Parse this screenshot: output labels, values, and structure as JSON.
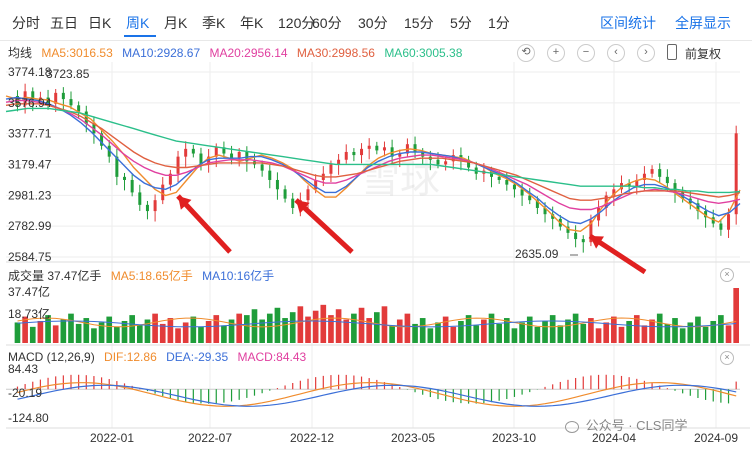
{
  "tabs": [
    "分时",
    "五日",
    "日K",
    "周K",
    "月K",
    "季K",
    "年K",
    "120分",
    "60分",
    "30分",
    "15分",
    "5分",
    "1分"
  ],
  "active_tab": "周K",
  "tools": {
    "range_stats": "区间统计",
    "fullscreen": "全屏显示"
  },
  "main_legend": {
    "avg_label": "均线",
    "ma5": "MA5:3016.53",
    "ma10": "MA10:2928.67",
    "ma20": "MA20:2956.14",
    "ma30": "MA30:2998.56",
    "ma60": "MA60:3005.38"
  },
  "controls": {
    "reset": "⟲",
    "zoom_in": "+",
    "zoom_out": "−",
    "left": "‹",
    "right": "›",
    "adjust": "前复权"
  },
  "volume_legend": {
    "title": "成交量 37.47亿手",
    "ma5": "MA5:18.65亿手",
    "ma10": "MA10:16亿手"
  },
  "macd_legend": {
    "title": "MACD (12,26,9)",
    "dif": "DIF:12.86",
    "dea": "DEA:-29.35",
    "macd": "MACD:84.43"
  },
  "watermark": "雪球",
  "footer_source": "公众号 · CLS同学",
  "colors": {
    "up": "#e23b3b",
    "down": "#1f9d3a",
    "ma5": "#f08c2d",
    "ma10": "#3b6fd8",
    "ma20": "#e040a0",
    "ma30": "#e06040",
    "ma60": "#2bbf8a",
    "accent": "#1a73e8"
  },
  "chart_data": {
    "type": "candlestick",
    "y_ticks": [
      "3774.18",
      "3576.94",
      "3377.71",
      "3179.47",
      "2981.23",
      "2782.99",
      "2584.75"
    ],
    "y_range": [
      2584.75,
      3774.18
    ],
    "x_ticks": [
      "2022-01",
      "2022-07",
      "2022-12",
      "2023-05",
      "2023-10",
      "2024-04",
      "2024-09"
    ],
    "annotations": {
      "high": "3723.85",
      "low": "2635.09"
    },
    "close_path": [
      3620,
      3560,
      3650,
      3590,
      3610,
      3570,
      3640,
      3600,
      3560,
      3520,
      3440,
      3380,
      3300,
      3230,
      3100,
      3080,
      3000,
      2920,
      2880,
      2950,
      3050,
      3120,
      3230,
      3280,
      3250,
      3180,
      3230,
      3290,
      3250,
      3220,
      3260,
      3200,
      3180,
      3140,
      3080,
      3020,
      2960,
      2900,
      2950,
      3020,
      3080,
      3120,
      3180,
      3210,
      3260,
      3240,
      3280,
      3300,
      3270,
      3290,
      3230,
      3250,
      3310,
      3260,
      3230,
      3210,
      3180,
      3200,
      3240,
      3210,
      3160,
      3120,
      3140,
      3100,
      3080,
      3050,
      3020,
      2980,
      2950,
      2900,
      2860,
      2830,
      2780,
      2740,
      2700,
      2680,
      2820,
      2900,
      2980,
      3020,
      3060,
      3040,
      3080,
      3120,
      3150,
      3100,
      3060,
      3000,
      2960,
      2930,
      2880,
      2840,
      2800,
      2760,
      2860,
      3380
    ],
    "ma_series": [
      {
        "name": "MA5",
        "values": [
          3620,
          3600,
          3610,
          3600,
          3594,
          3570,
          3550,
          3510,
          3470,
          3400,
          3330,
          3250,
          3160,
          3090,
          3020,
          2980,
          3000,
          3080,
          3160,
          3220,
          3240,
          3220,
          3200,
          3220,
          3240,
          3220,
          3190,
          3150,
          3080,
          3020,
          2970,
          2970,
          3030,
          3100,
          3170,
          3220,
          3250,
          3270,
          3280,
          3270,
          3250,
          3240,
          3230,
          3220,
          3190,
          3160,
          3120,
          3090,
          3050,
          3000,
          2940,
          2880,
          2810,
          2760,
          2750,
          2800,
          2900,
          2980,
          3040,
          3070,
          3090,
          3080,
          3040,
          2990,
          2940,
          2890,
          2840,
          2810,
          2880,
          3016
        ]
      },
      {
        "name": "MA10",
        "values": [
          3600,
          3610,
          3600,
          3590,
          3570,
          3540,
          3500,
          3450,
          3390,
          3320,
          3250,
          3180,
          3110,
          3060,
          3030,
          3020,
          3050,
          3110,
          3170,
          3210,
          3220,
          3220,
          3220,
          3230,
          3230,
          3210,
          3180,
          3140,
          3090,
          3040,
          3000,
          3000,
          3040,
          3100,
          3160,
          3200,
          3230,
          3250,
          3260,
          3260,
          3250,
          3240,
          3230,
          3210,
          3190,
          3160,
          3130,
          3100,
          3060,
          3010,
          2960,
          2900,
          2850,
          2810,
          2800,
          2830,
          2880,
          2940,
          2990,
          3030,
          3050,
          3050,
          3030,
          3000,
          2960,
          2920,
          2880,
          2850,
          2870,
          2929
        ]
      },
      {
        "name": "MA20",
        "values": [
          3580,
          3590,
          3590,
          3580,
          3560,
          3540,
          3510,
          3470,
          3420,
          3370,
          3310,
          3250,
          3200,
          3160,
          3130,
          3110,
          3110,
          3130,
          3160,
          3190,
          3200,
          3210,
          3210,
          3210,
          3200,
          3190,
          3170,
          3140,
          3110,
          3080,
          3060,
          3060,
          3080,
          3110,
          3140,
          3170,
          3200,
          3220,
          3230,
          3240,
          3240,
          3230,
          3220,
          3210,
          3190,
          3170,
          3140,
          3110,
          3080,
          3050,
          3010,
          2970,
          2930,
          2900,
          2890,
          2890,
          2910,
          2940,
          2970,
          3000,
          3010,
          3020,
          3010,
          3000,
          2980,
          2960,
          2940,
          2930,
          2940,
          2956
        ]
      },
      {
        "name": "MA30",
        "values": [
          3560,
          3570,
          3570,
          3570,
          3560,
          3540,
          3520,
          3490,
          3450,
          3410,
          3360,
          3310,
          3260,
          3220,
          3190,
          3170,
          3160,
          3160,
          3170,
          3180,
          3190,
          3190,
          3190,
          3190,
          3190,
          3180,
          3170,
          3150,
          3130,
          3110,
          3100,
          3100,
          3110,
          3120,
          3140,
          3160,
          3180,
          3200,
          3210,
          3220,
          3220,
          3220,
          3210,
          3200,
          3190,
          3170,
          3150,
          3130,
          3110,
          3080,
          3050,
          3020,
          2990,
          2960,
          2950,
          2950,
          2960,
          2970,
          2990,
          3000,
          3010,
          3010,
          3010,
          3010,
          3000,
          2990,
          2980,
          2970,
          2980,
          2999
        ]
      },
      {
        "name": "MA60",
        "values": [
          3520,
          3530,
          3540,
          3540,
          3540,
          3530,
          3520,
          3510,
          3490,
          3470,
          3450,
          3430,
          3410,
          3390,
          3370,
          3350,
          3330,
          3320,
          3310,
          3300,
          3290,
          3280,
          3270,
          3260,
          3250,
          3240,
          3230,
          3220,
          3210,
          3200,
          3190,
          3180,
          3180,
          3180,
          3180,
          3180,
          3180,
          3180,
          3180,
          3180,
          3180,
          3170,
          3160,
          3150,
          3140,
          3130,
          3120,
          3110,
          3100,
          3090,
          3080,
          3070,
          3060,
          3050,
          3040,
          3040,
          3040,
          3040,
          3040,
          3040,
          3030,
          3030,
          3020,
          3020,
          3010,
          3010,
          3000,
          3000,
          3000,
          3005
        ]
      }
    ],
    "volume_ticks": [
      "37.47亿",
      "18.73亿"
    ],
    "volume_max": 37.47,
    "macd_ticks": [
      "84.43",
      "-20.19",
      "-124.80"
    ],
    "macd_range": [
      -124.8,
      84.43
    ]
  }
}
